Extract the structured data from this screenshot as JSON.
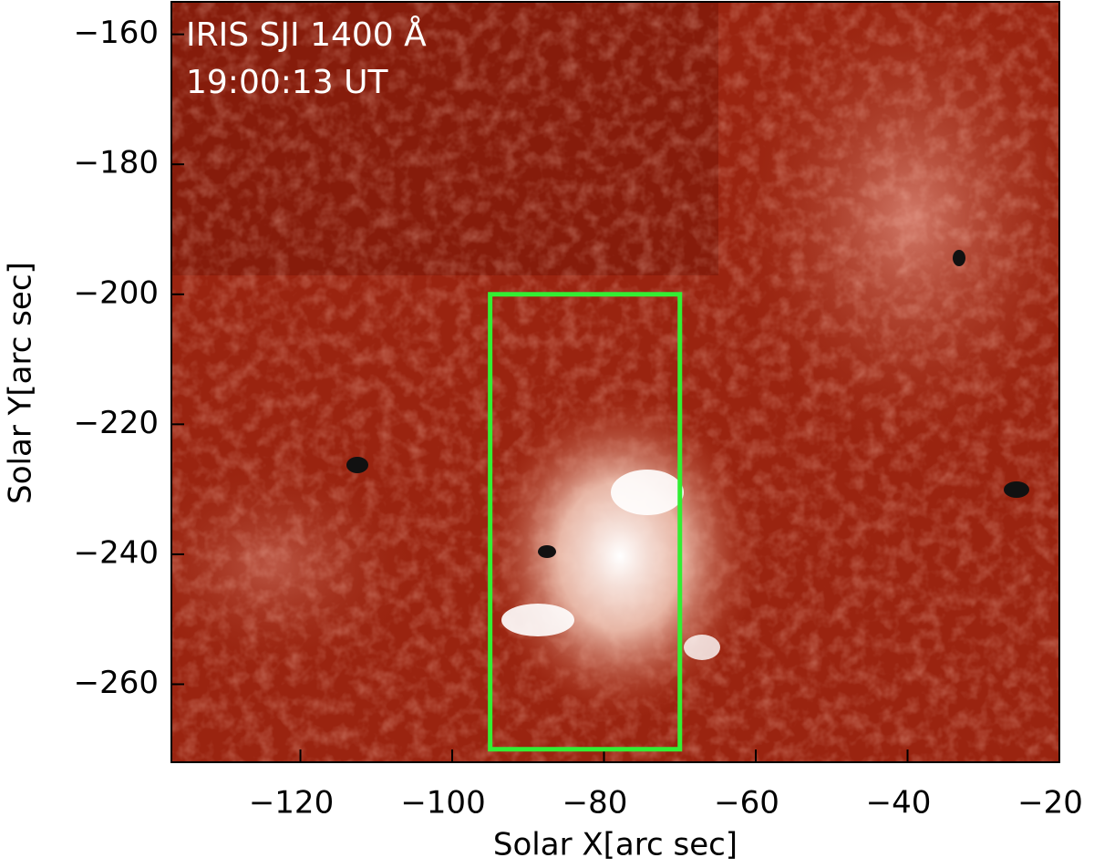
{
  "chart_data": {
    "type": "image",
    "annotations": [
      "IRIS SJI 1400 Å",
      "19:00:13 UT"
    ],
    "x_label": "Solar X[arc sec]",
    "y_label": "Solar Y[arc sec]",
    "xlim": [
      -137,
      -20
    ],
    "ylim": [
      -272,
      -155
    ],
    "xticks": [
      {
        "value": -120,
        "label": "−120"
      },
      {
        "value": -100,
        "label": "−100"
      },
      {
        "value": -80,
        "label": "−80"
      },
      {
        "value": -60,
        "label": "−60"
      },
      {
        "value": -40,
        "label": "−40"
      },
      {
        "value": -20,
        "label": "−20"
      }
    ],
    "yticks": [
      {
        "value": -260,
        "label": "−260"
      },
      {
        "value": -240,
        "label": "−240"
      },
      {
        "value": -220,
        "label": "−220"
      },
      {
        "value": -200,
        "label": "−200"
      },
      {
        "value": -180,
        "label": "−180"
      },
      {
        "value": -160,
        "label": "−160"
      }
    ],
    "box": {
      "x": [
        -95,
        -70
      ],
      "y": [
        -270,
        -200
      ],
      "color": "#33ee33"
    }
  }
}
